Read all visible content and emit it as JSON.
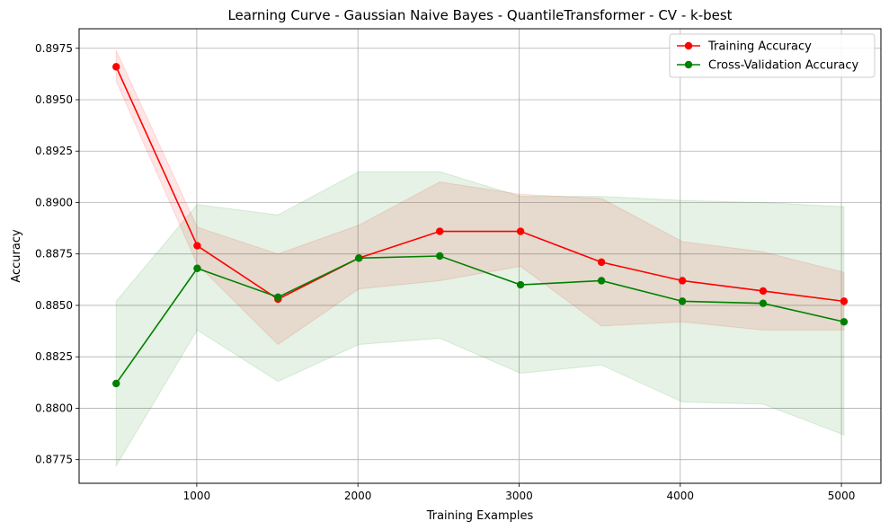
{
  "chart_data": {
    "type": "line",
    "title": "Learning Curve - Gaussian Naive Bayes - QuantileTransformer - CV - k-best",
    "xlabel": "Training Examples",
    "ylabel": "Accuracy",
    "x": [
      500,
      1003,
      1504,
      2006,
      2508,
      3009,
      3511,
      4013,
      4514,
      5016
    ],
    "xlim": [
      270,
      5245
    ],
    "ylim": [
      0.87635,
      0.89845
    ],
    "xticks": [
      1000,
      2000,
      3000,
      4000,
      5000
    ],
    "yticks": [
      0.8775,
      0.88,
      0.8825,
      0.885,
      0.8875,
      0.89,
      0.8925,
      0.895,
      0.8975
    ],
    "xtick_labels": [
      "1000",
      "2000",
      "3000",
      "4000",
      "5000"
    ],
    "ytick_labels": [
      "0.8775",
      "0.8800",
      "0.8825",
      "0.8850",
      "0.8875",
      "0.8900",
      "0.8925",
      "0.8950",
      "0.8975"
    ],
    "grid": true,
    "legend": "top-right",
    "series": [
      {
        "name": "Training Accuracy",
        "color": "#ff0000",
        "values": [
          0.8966,
          0.8879,
          0.8853,
          0.8873,
          0.8886,
          0.8886,
          0.8871,
          0.8862,
          0.8857,
          0.8852
        ],
        "upper": [
          0.8974,
          0.8888,
          0.8875,
          0.8889,
          0.891,
          0.8904,
          0.8902,
          0.8881,
          0.8876,
          0.8866
        ],
        "lower": [
          0.8959,
          0.887,
          0.8831,
          0.8858,
          0.8862,
          0.8869,
          0.884,
          0.8842,
          0.8838,
          0.8838
        ]
      },
      {
        "name": "Cross-Validation Accuracy",
        "color": "#008000",
        "values": [
          0.8812,
          0.8868,
          0.8854,
          0.8873,
          0.8874,
          0.886,
          0.8862,
          0.8852,
          0.8851,
          0.8842
        ],
        "upper": [
          0.8852,
          0.8899,
          0.8894,
          0.8915,
          0.8915,
          0.8903,
          0.8903,
          0.8901,
          0.89,
          0.8898
        ],
        "lower": [
          0.8772,
          0.8838,
          0.8813,
          0.8831,
          0.8834,
          0.8817,
          0.8821,
          0.8803,
          0.8802,
          0.8787
        ]
      }
    ]
  }
}
